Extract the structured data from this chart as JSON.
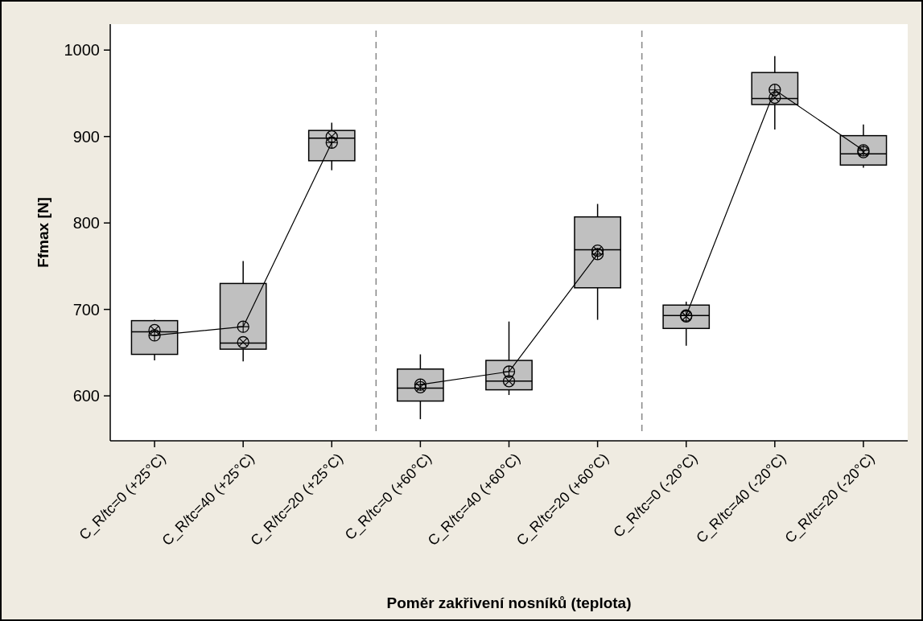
{
  "chart_data": {
    "type": "box",
    "xlabel": "Poměr zakřivení nosníků (teplota)",
    "ylabel": "Ffmax [N]",
    "categories": [
      "C_R/tc=0 (+25°C)",
      "C_R/tc=40 (+25°C)",
      "C_R/tc=20 (+25°C)",
      "C_R/tc=0 (+60°C)",
      "C_R/tc=40 (+60°C)",
      "C_R/tc=20 (+60°C)",
      "C_R/tc=0 (-20°C)",
      "C_R/tc=40 (-20°C)",
      "C_R/tc=20 (-20°C)"
    ],
    "ylim": [
      548,
      1030
    ],
    "yticks": [
      600,
      700,
      800,
      900,
      1000
    ],
    "series": [
      {
        "type": "box",
        "color": "#c0c0c0",
        "boxes": [
          {
            "low": 641,
            "q1": 648,
            "median": 674,
            "q3": 687,
            "high": 688,
            "mean": 670
          },
          {
            "low": 640,
            "q1": 654,
            "median": 661,
            "q3": 730,
            "high": 756,
            "mean": 680
          },
          {
            "low": 861,
            "q1": 872,
            "median": 898,
            "q3": 907,
            "high": 916,
            "mean": 893
          },
          {
            "low": 573,
            "q1": 594,
            "median": 609,
            "q3": 631,
            "high": 648,
            "mean": 613
          },
          {
            "low": 601,
            "q1": 607,
            "median": 617,
            "q3": 641,
            "high": 686,
            "mean": 628
          },
          {
            "low": 688,
            "q1": 725,
            "median": 769,
            "q3": 807,
            "high": 822,
            "mean": 764
          },
          {
            "low": 658,
            "q1": 678,
            "median": 693,
            "q3": 705,
            "high": 709,
            "mean": 693
          },
          {
            "low": 908,
            "q1": 937,
            "median": 944,
            "q3": 974,
            "high": 993,
            "mean": 954
          },
          {
            "low": 864,
            "q1": 867,
            "median": 880,
            "q3": 901,
            "high": 914,
            "mean": 884
          }
        ]
      },
      {
        "type": "line",
        "color": "#000000",
        "marker": "none",
        "values": [
          670,
          680,
          893,
          null,
          null,
          null,
          null,
          null,
          null
        ]
      },
      {
        "type": "line",
        "color": "#000000",
        "marker": "none",
        "values": [
          null,
          null,
          null,
          613,
          628,
          764,
          null,
          null,
          null
        ]
      },
      {
        "type": "line",
        "color": "#000000",
        "marker": "none",
        "values": [
          null,
          null,
          null,
          null,
          null,
          null,
          693,
          954,
          884
        ]
      },
      {
        "type": "scatter",
        "color": "#000000",
        "values": [
          676,
          662,
          900,
          610,
          617,
          768,
          692,
          945,
          882
        ]
      }
    ],
    "grid": false
  }
}
